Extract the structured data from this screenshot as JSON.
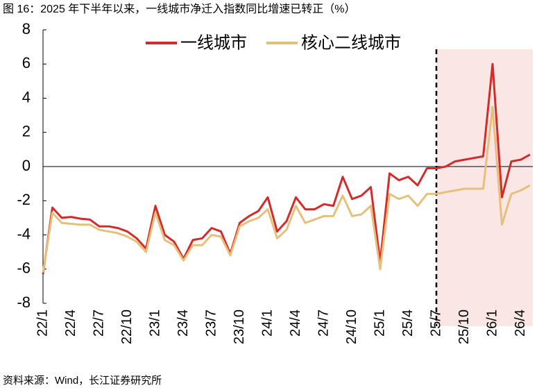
{
  "chart_data": {
    "type": "line",
    "title": "图 16：2025 年下半年以来，一线城市净迁入指数同比增速已转正（%）",
    "source": "资料来源：Wind，长江证券研究所",
    "categories": [
      "22/1",
      null,
      null,
      "22/4",
      null,
      null,
      "22/7",
      null,
      null,
      "22/10",
      null,
      null,
      "23/1",
      null,
      null,
      "23/4",
      null,
      null,
      "23/7",
      null,
      null,
      "23/10",
      null,
      null,
      "24/1",
      null,
      null,
      "24/4",
      null,
      null,
      "24/7",
      null,
      null,
      "24/10",
      null,
      null,
      "25/1",
      null,
      null,
      "25/4",
      null,
      null,
      "25/7",
      null,
      null,
      "25/10",
      null,
      null,
      "26/1",
      null,
      null,
      "26/4",
      null
    ],
    "highlight_from": "25/7",
    "series": [
      {
        "name": "一线城市",
        "color": "#d42a2a",
        "values": [
          -6.3,
          -2.4,
          -3.0,
          -2.95,
          -3.05,
          -3.1,
          -3.5,
          -3.5,
          -3.6,
          -3.8,
          -4.2,
          -4.8,
          -2.3,
          -4.0,
          -4.4,
          -5.4,
          -4.3,
          -4.2,
          -3.6,
          -3.8,
          -5.1,
          -3.3,
          -2.9,
          -2.6,
          -1.8,
          -3.8,
          -3.2,
          -1.8,
          -2.5,
          -2.5,
          -2.2,
          -2.3,
          -0.6,
          -1.9,
          -1.7,
          -1.2,
          -5.6,
          -0.4,
          -0.8,
          -0.6,
          -1.1,
          -0.1,
          -0.1,
          0.0,
          0.3,
          0.4,
          0.5,
          0.6,
          6.0,
          -1.8,
          0.3,
          0.4,
          0.7
        ]
      },
      {
        "name": "核心二线城市",
        "color": "#e6c07a",
        "values": [
          -6.2,
          -2.7,
          -3.3,
          -3.35,
          -3.4,
          -3.4,
          -3.7,
          -3.8,
          -3.9,
          -4.1,
          -4.4,
          -5.0,
          -2.7,
          -4.3,
          -4.6,
          -5.5,
          -4.6,
          -4.6,
          -4.0,
          -4.1,
          -5.2,
          -3.5,
          -3.2,
          -3.0,
          -2.5,
          -4.2,
          -3.7,
          -2.3,
          -3.3,
          -3.1,
          -2.9,
          -2.9,
          -1.7,
          -2.9,
          -2.8,
          -2.3,
          -6.0,
          -1.6,
          -1.9,
          -1.7,
          -2.3,
          -1.6,
          -1.6,
          -1.5,
          -1.4,
          -1.3,
          -1.3,
          -1.3,
          3.5,
          -3.4,
          -1.6,
          -1.4,
          -1.1
        ]
      }
    ],
    "ylim": [
      -8,
      8
    ],
    "yticks": [
      8,
      6,
      4,
      2,
      0,
      -2,
      -4,
      -6,
      -8
    ]
  }
}
